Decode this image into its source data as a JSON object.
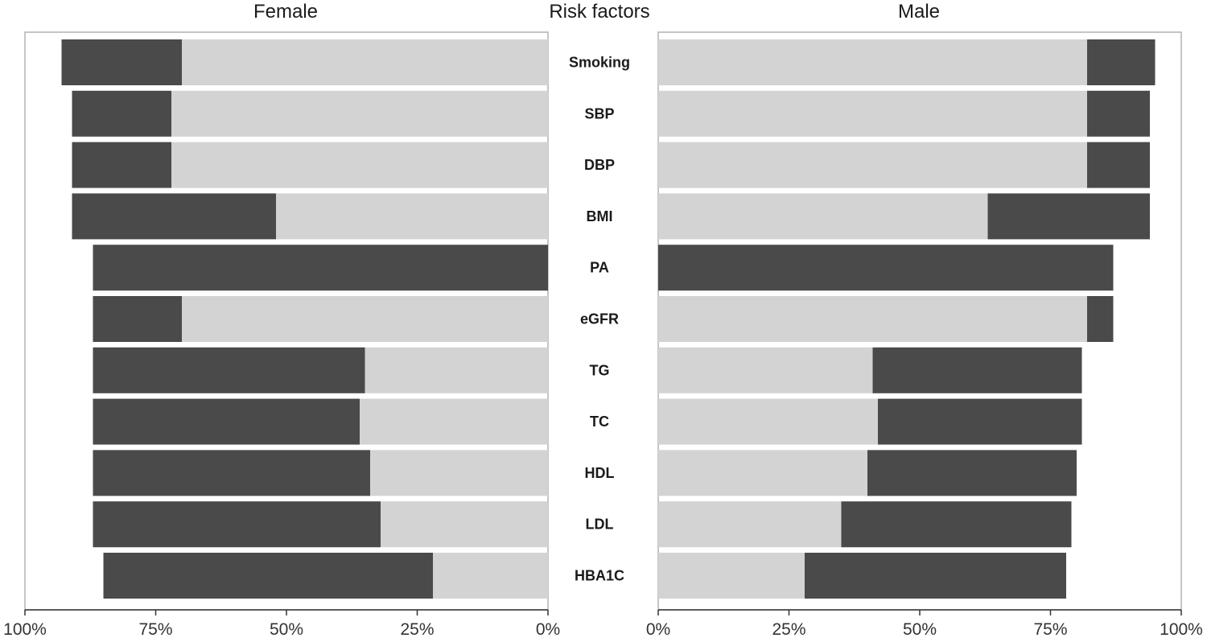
{
  "chart_data": {
    "type": "bar",
    "orientation": "horizontal",
    "layout": "back-to-back",
    "panel_titles": {
      "left": "Female",
      "center": "Risk factors",
      "right": "Male"
    },
    "categories": [
      "Smoking",
      "SBP",
      "DBP",
      "BMI",
      "PA",
      "eGFR",
      "TG",
      "TC",
      "HDL",
      "LDL",
      "HBA1C"
    ],
    "female": {
      "light_values": [
        70,
        72,
        72,
        52,
        0,
        70,
        35,
        36,
        34,
        32,
        22
      ],
      "total_values": [
        93,
        91,
        91,
        91,
        87,
        87,
        87,
        87,
        87,
        87,
        85
      ]
    },
    "male": {
      "light_values": [
        82,
        82,
        82,
        63,
        0,
        82,
        41,
        42,
        40,
        35,
        28
      ],
      "total_values": [
        95,
        94,
        94,
        94,
        87,
        87,
        81,
        81,
        80,
        79,
        78
      ]
    },
    "colors": {
      "light": "#d3d3d3",
      "dark": "#4a4a4a"
    },
    "axis_range": [
      0,
      100
    ],
    "x_ticks": [
      "100%",
      "75%",
      "50%",
      "25%",
      "0%"
    ],
    "x_ticks_right": [
      "0%",
      "25%",
      "50%",
      "75%",
      "100%"
    ],
    "grid": false,
    "legend": "none"
  }
}
